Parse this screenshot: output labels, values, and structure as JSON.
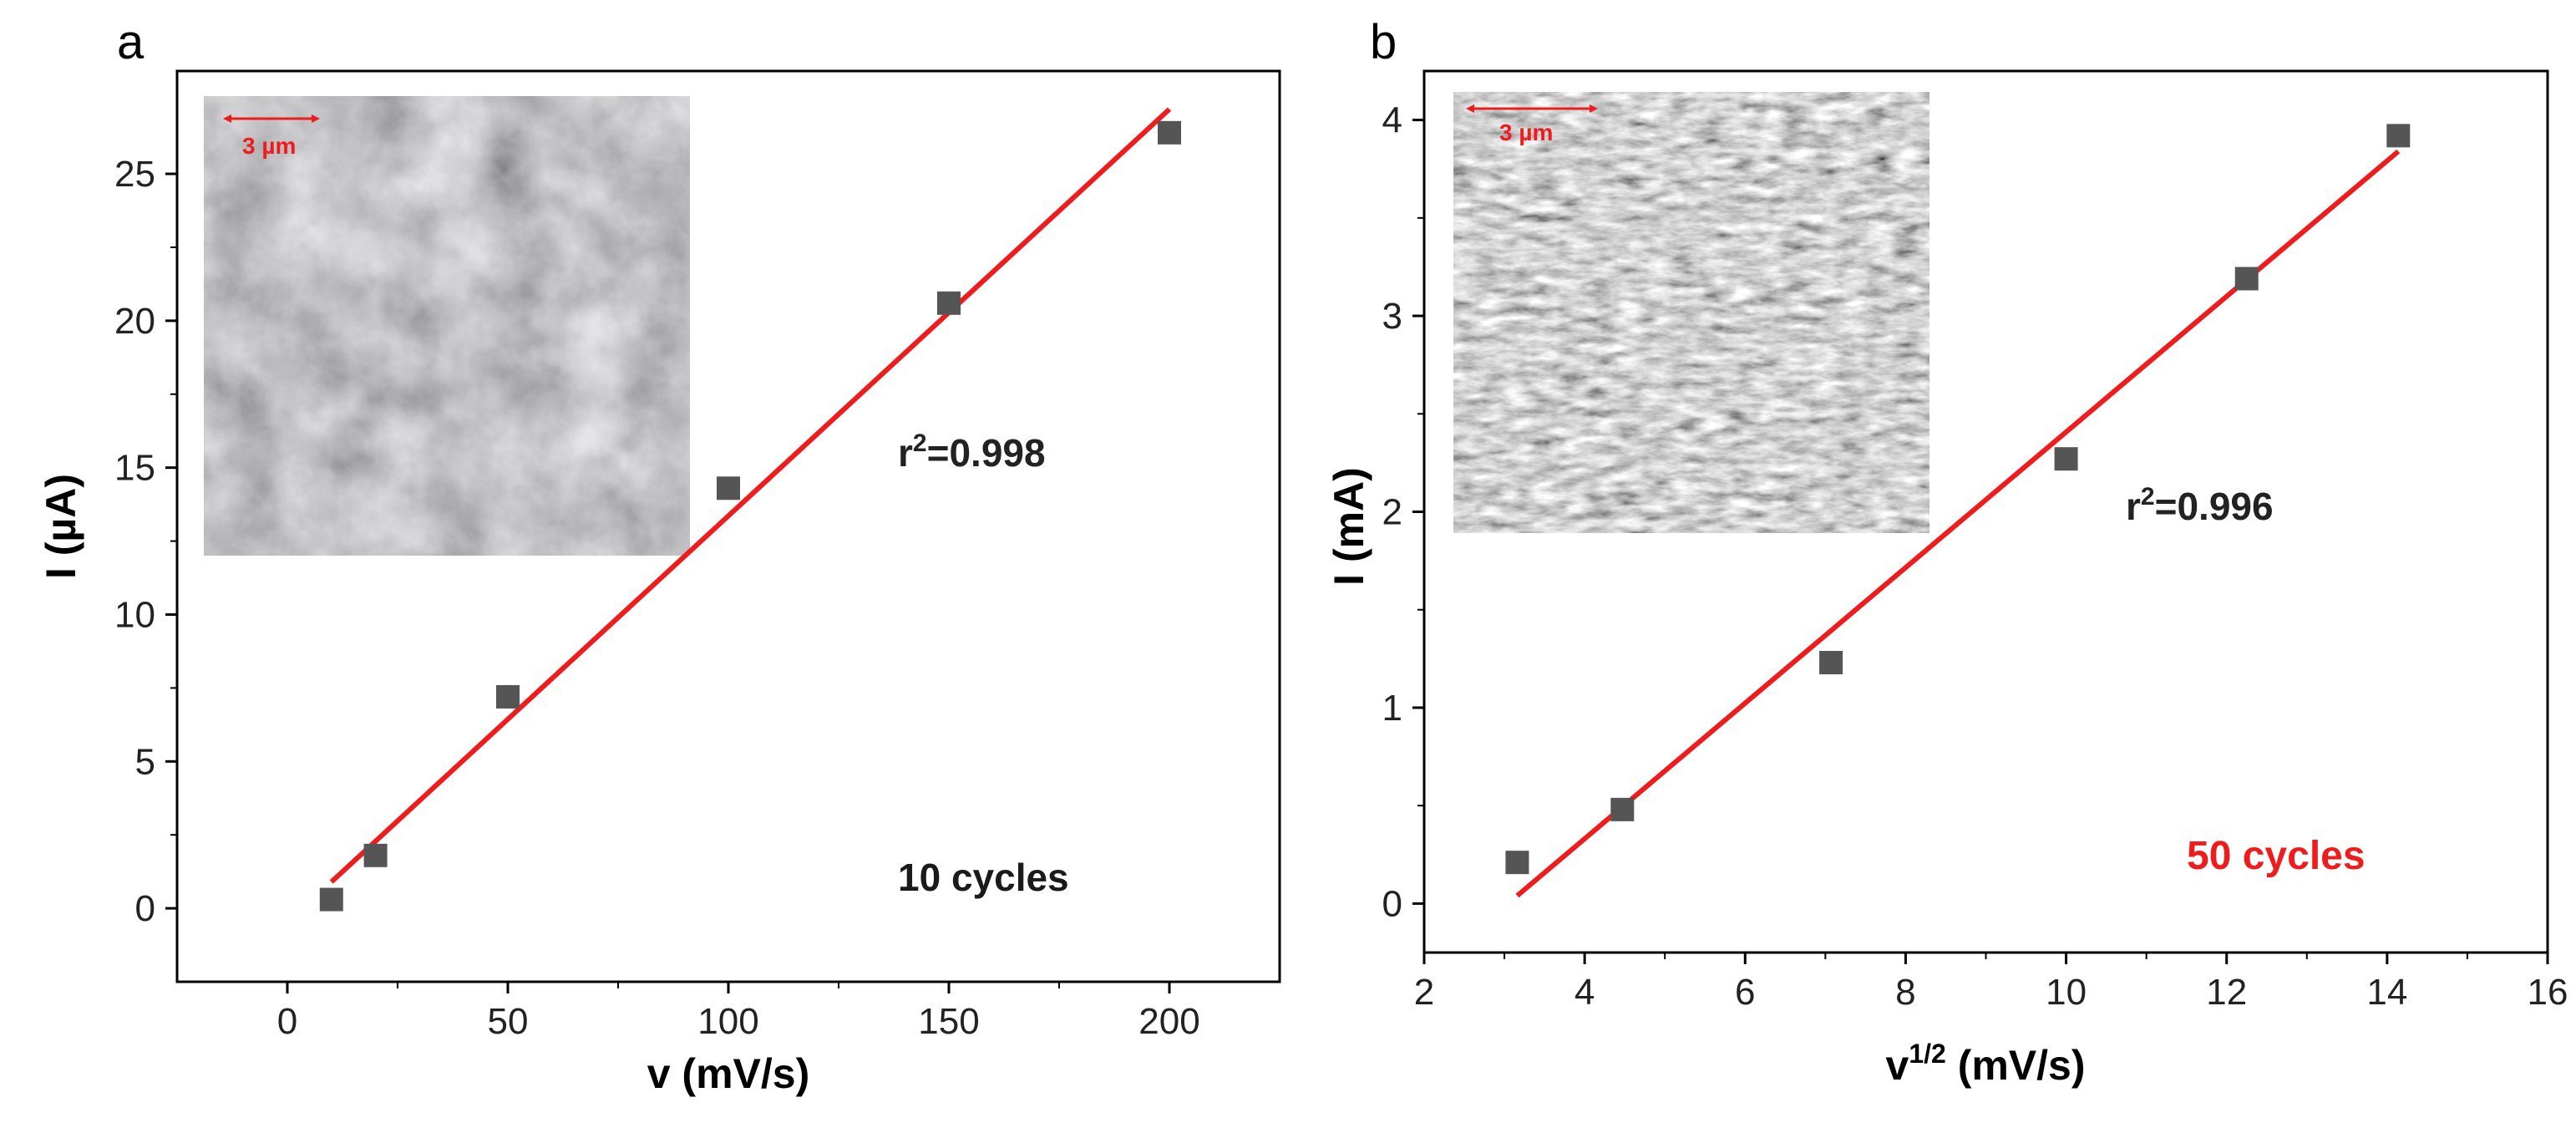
{
  "chart_data": [
    {
      "panel_label": "a",
      "type": "scatter",
      "xlabel": "v (mV/s)",
      "ylabel": "I (µA)",
      "xlim": [
        -25,
        225
      ],
      "ylim": [
        -2.5,
        28.5
      ],
      "xticks": [
        0,
        50,
        100,
        150,
        200
      ],
      "yticks": [
        0,
        5,
        10,
        15,
        20,
        25
      ],
      "x": [
        10,
        20,
        50,
        100,
        150,
        200
      ],
      "y": [
        0.3,
        1.8,
        7.2,
        14.3,
        20.6,
        26.4
      ],
      "fit": {
        "x": [
          10,
          200
        ],
        "y": [
          0.9,
          27.2
        ],
        "color": "#ee1c1c"
      },
      "r2_label": "r",
      "r2_sup": "2",
      "r2_value": "=0.998",
      "cycles_label": "10 cycles",
      "cycles_color": "#1a1a1a",
      "inset_scale_label": "3 µm",
      "marker_color": "#555555"
    },
    {
      "panel_label": "b",
      "type": "scatter",
      "xlabel": "v",
      "xlabel_sup": "1/2",
      "xlabel_rest": " (mV/s)",
      "ylabel": "I (mA)",
      "xlim": [
        2,
        16
      ],
      "ylim": [
        -0.25,
        4.25
      ],
      "xticks": [
        2,
        4,
        6,
        8,
        10,
        12,
        14,
        16
      ],
      "yticks": [
        0,
        1,
        2,
        3,
        4
      ],
      "x": [
        3.16,
        4.47,
        7.07,
        10.0,
        12.25,
        14.14
      ],
      "y": [
        0.21,
        0.48,
        1.23,
        2.27,
        3.19,
        3.92
      ],
      "fit": {
        "x": [
          3.16,
          14.14
        ],
        "y": [
          0.04,
          3.84
        ],
        "color": "#ee1c1c"
      },
      "r2_label": "r",
      "r2_sup": "2",
      "r2_value": "=0.996",
      "cycles_label": "50 cycles",
      "cycles_color": "#ee1c1c",
      "inset_scale_label": "3 µm",
      "marker_color": "#555555"
    }
  ]
}
